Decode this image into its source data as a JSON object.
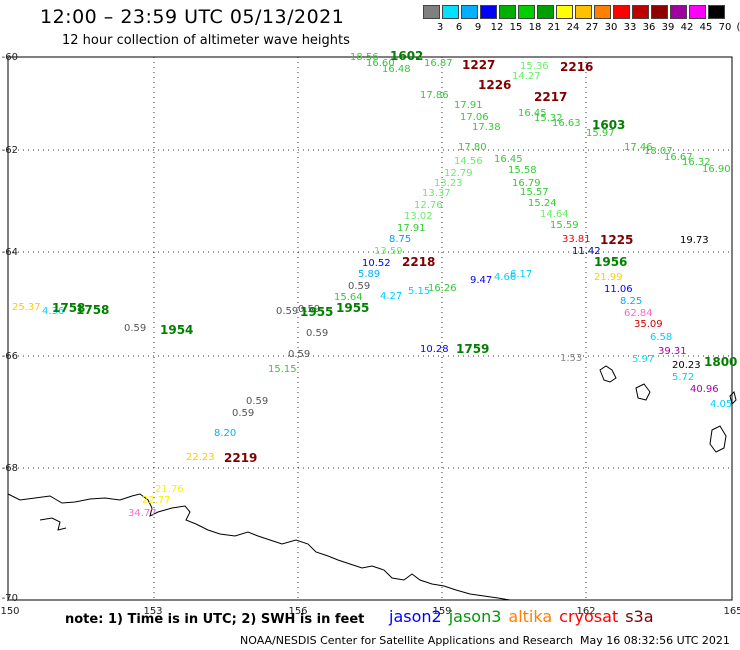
{
  "header": {
    "title": "12:00 – 23:59 UTC 05/13/2021",
    "subtitle": "12 hour collection of altimeter wave heights"
  },
  "colorbar": {
    "labels": [
      "3",
      "6",
      "9",
      "12",
      "15",
      "18",
      "21",
      "24",
      "27",
      "30",
      "33",
      "36",
      "39",
      "42",
      "45",
      "70",
      "(ft)"
    ],
    "colors": [
      "#808080",
      "#00e0ff",
      "#00b0ff",
      "#0000ff",
      "#00b000",
      "#00d000",
      "#00a000",
      "#ffff00",
      "#ffc000",
      "#ff8000",
      "#ff0000",
      "#c00000",
      "#900000",
      "#a000a0",
      "#ff00ff",
      "#000000"
    ]
  },
  "axes": {
    "x_ticks": [
      "150",
      "153",
      "156",
      "159",
      "162",
      "165"
    ],
    "y_ticks": [
      "-60",
      "-62",
      "-64",
      "-66",
      "-68",
      "-70"
    ]
  },
  "map_data": {
    "times": [
      {
        "t": "1602",
        "c": "#008000"
      },
      {
        "t": "1227",
        "c": "#800000"
      },
      {
        "t": "2216",
        "c": "#800000"
      },
      {
        "t": "1226",
        "c": "#800000"
      },
      {
        "t": "2217",
        "c": "#800000"
      },
      {
        "t": "1603",
        "c": "#008000"
      },
      {
        "t": "1225",
        "c": "#800000"
      },
      {
        "t": "1956",
        "c": "#008000"
      },
      {
        "t": "2218",
        "c": "#800000"
      },
      {
        "t": "1758",
        "c": "#008000"
      },
      {
        "t": "1758",
        "c": "#008000"
      },
      {
        "t": "1954",
        "c": "#008000"
      },
      {
        "t": "1955",
        "c": "#008000"
      },
      {
        "t": "1955",
        "c": "#008000"
      },
      {
        "t": "1759",
        "c": "#008000"
      },
      {
        "t": "1800",
        "c": "#008000"
      },
      {
        "t": "2219",
        "c": "#800000"
      }
    ],
    "observations": [
      {
        "v": "18.56",
        "c": "#33cc33"
      },
      {
        "v": "16.60",
        "c": "#33cc33"
      },
      {
        "v": "16.48",
        "c": "#33cc33"
      },
      {
        "v": "16.87",
        "c": "#33cc33"
      },
      {
        "v": "15.36",
        "c": "#66ee66"
      },
      {
        "v": "14.27",
        "c": "#66ee66"
      },
      {
        "v": "17.86",
        "c": "#33cc33"
      },
      {
        "v": "17.91",
        "c": "#33cc33"
      },
      {
        "v": "17.06",
        "c": "#33cc33"
      },
      {
        "v": "16.45",
        "c": "#33cc33"
      },
      {
        "v": "15.32",
        "c": "#33cc33"
      },
      {
        "v": "16.63",
        "c": "#33cc33"
      },
      {
        "v": "15.97",
        "c": "#33cc33"
      },
      {
        "v": "17.46",
        "c": "#33cc33"
      },
      {
        "v": "18.07",
        "c": "#33cc33"
      },
      {
        "v": "16.67",
        "c": "#33cc33"
      },
      {
        "v": "16.32",
        "c": "#33cc33"
      },
      {
        "v": "16.90",
        "c": "#33cc33"
      },
      {
        "v": "17.38",
        "c": "#33cc33"
      },
      {
        "v": "17.80",
        "c": "#33cc33"
      },
      {
        "v": "14.56",
        "c": "#66ee66"
      },
      {
        "v": "16.45",
        "c": "#33cc33"
      },
      {
        "v": "12.79",
        "c": "#66ee66"
      },
      {
        "v": "15.58",
        "c": "#33cc33"
      },
      {
        "v": "13.23",
        "c": "#66ee66"
      },
      {
        "v": "16.79",
        "c": "#33cc33"
      },
      {
        "v": "13.37",
        "c": "#66ee66"
      },
      {
        "v": "15.57",
        "c": "#33cc33"
      },
      {
        "v": "12.76",
        "c": "#66ee66"
      },
      {
        "v": "15.24",
        "c": "#33cc33"
      },
      {
        "v": "13.02",
        "c": "#66ee66"
      },
      {
        "v": "14.64",
        "c": "#66ee66"
      },
      {
        "v": "17.91",
        "c": "#33cc33"
      },
      {
        "v": "15.59",
        "c": "#33cc33"
      },
      {
        "v": "8.75",
        "c": "#00a0ff"
      },
      {
        "v": "33.81",
        "c": "#ff0000"
      },
      {
        "v": "13.59",
        "c": "#66ee66"
      },
      {
        "v": "19.73",
        "c": "#000000"
      },
      {
        "v": "10.52",
        "c": "#0000ff"
      },
      {
        "v": "11.42",
        "c": "#0000a0"
      },
      {
        "v": "5.89",
        "c": "#00b0ff"
      },
      {
        "v": "0.59",
        "c": "#555555"
      },
      {
        "v": "15.64",
        "c": "#33cc33"
      },
      {
        "v": "4.27",
        "c": "#00d0ff"
      },
      {
        "v": "5.15",
        "c": "#00d0ff"
      },
      {
        "v": "16.26",
        "c": "#33cc33"
      },
      {
        "v": "9.47",
        "c": "#0000ff"
      },
      {
        "v": "4.66",
        "c": "#00d0ff"
      },
      {
        "v": "6.17",
        "c": "#00d0ff"
      },
      {
        "v": "21.99",
        "c": "#ffcc00"
      },
      {
        "v": "11.06",
        "c": "#0000ff"
      },
      {
        "v": "8.25",
        "c": "#00b0ff"
      },
      {
        "v": "62.84",
        "c": "#ff66cc"
      },
      {
        "v": "35.09",
        "c": "#cc0000"
      },
      {
        "v": "6.58",
        "c": "#00d0ff"
      },
      {
        "v": "39.31",
        "c": "#aa00aa"
      },
      {
        "v": "5.97",
        "c": "#00e0ff"
      },
      {
        "v": "20.23",
        "c": "#000000"
      },
      {
        "v": "5.72",
        "c": "#00d0ff"
      },
      {
        "v": "40.96",
        "c": "#aa00aa"
      },
      {
        "v": "4.05",
        "c": "#00d0ff"
      },
      {
        "v": "25.37",
        "c": "#ffcc00"
      },
      {
        "v": "4.36",
        "c": "#00d0ff"
      },
      {
        "v": "0.59",
        "c": "#555555"
      },
      {
        "v": "0.59",
        "c": "#555555"
      },
      {
        "v": "0.59",
        "c": "#555555"
      },
      {
        "v": "0.59",
        "c": "#555555"
      },
      {
        "v": "0.59",
        "c": "#555555"
      },
      {
        "v": "15.15",
        "c": "#33cc33"
      },
      {
        "v": "10.28",
        "c": "#0000ff"
      },
      {
        "v": "1.53",
        "c": "#888888"
      },
      {
        "v": "0.59",
        "c": "#555555"
      },
      {
        "v": "0.59",
        "c": "#555555"
      },
      {
        "v": "8.20",
        "c": "#00b0ff"
      },
      {
        "v": "22.23",
        "c": "#ffcc00"
      },
      {
        "v": "21.76",
        "c": "#ffee00"
      },
      {
        "v": "22.77",
        "c": "#ffee00"
      },
      {
        "v": "34.77",
        "c": "#ff66cc"
      }
    ]
  },
  "footer": {
    "note": "note: 1) Time is in UTC; 2) SWH is in feet",
    "legend": [
      {
        "name": "jason2",
        "color": "#0000ff"
      },
      {
        "name": "jason3",
        "color": "#009900"
      },
      {
        "name": "altika",
        "color": "#ff8000"
      },
      {
        "name": "cryosat",
        "color": "#ff0000"
      },
      {
        "name": "s3a",
        "color": "#800000"
      }
    ],
    "credit": "NOAA/NESDIS Center for Satellite Applications and Research",
    "timestamp": "May 16 08:32:56 UTC 2021"
  }
}
